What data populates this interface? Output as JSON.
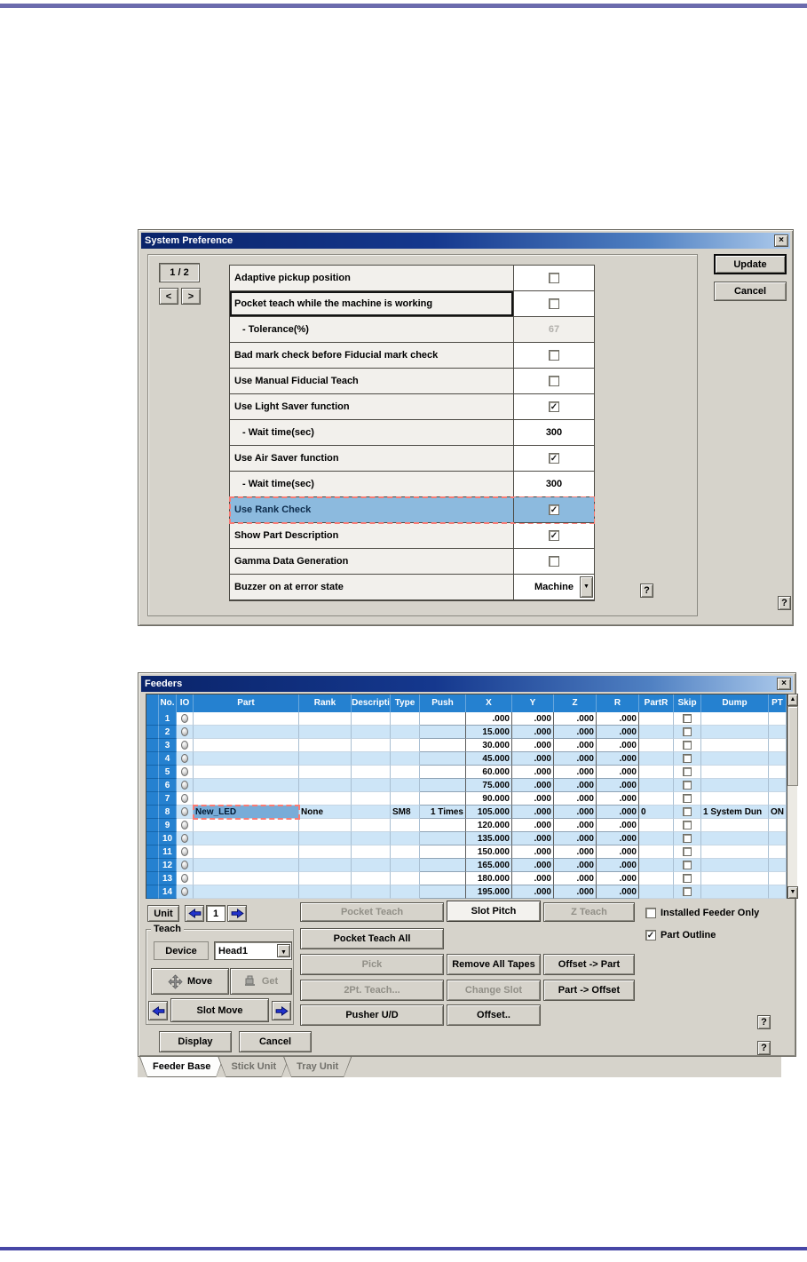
{
  "icons": {
    "close": "×",
    "dropdown": "▼",
    "scroll_up": "▲",
    "scroll_down": "▼",
    "check": "✓",
    "help": "?"
  },
  "colors": {
    "header_blue": "#2581d0",
    "row_alt_blue": "#cde5f7",
    "selected_cell": "#78acd8",
    "highlight_row": "#8cbade",
    "annotation_red": "#f97b74",
    "top_rule": "#6b6bad",
    "bottom_rule": "#4747a6"
  },
  "system_preference": {
    "title": "System Preference",
    "pager": {
      "label": "1 / 2",
      "prev": "<",
      "next": ">"
    },
    "rows": [
      {
        "label": "Adaptive pickup position",
        "type": "checkbox",
        "checked": false
      },
      {
        "label": "Pocket teach while the machine is working",
        "type": "checkbox",
        "checked": false,
        "focused": true
      },
      {
        "label": "- Tolerance(%)",
        "type": "text",
        "value": "67",
        "disabled": true,
        "indent": true
      },
      {
        "label": "Bad mark check before Fiducial mark check",
        "type": "checkbox",
        "checked": false
      },
      {
        "label": "Use Manual Fiducial Teach",
        "type": "checkbox",
        "checked": false
      },
      {
        "label": "Use Light Saver function",
        "type": "checkbox",
        "checked": true
      },
      {
        "label": "- Wait time(sec)",
        "type": "text",
        "value": "300",
        "indent": true
      },
      {
        "label": "Use Air Saver function",
        "type": "checkbox",
        "checked": true
      },
      {
        "label": "- Wait time(sec)",
        "type": "text",
        "value": "300",
        "indent": true
      },
      {
        "label": "Use Rank Check",
        "type": "checkbox",
        "checked": true,
        "highlighted": true
      },
      {
        "label": "Show Part Description",
        "type": "checkbox",
        "checked": true
      },
      {
        "label": "Gamma Data Generation",
        "type": "checkbox",
        "checked": false
      },
      {
        "label": "Buzzer on at error state",
        "type": "dropdown",
        "value": "Machine"
      }
    ],
    "buttons": {
      "update": "Update",
      "cancel": "Cancel"
    }
  },
  "feeders": {
    "title": "Feeders",
    "columns": [
      "No.",
      "IO",
      "Part",
      "Rank",
      "Descripti",
      "Type",
      "Push",
      "X",
      "Y",
      "Z",
      "R",
      "PartR",
      "Skip",
      "Dump",
      "PT"
    ],
    "rows": [
      {
        "no": "1",
        "part": "",
        "rank": "",
        "desc": "",
        "type": "",
        "push": "",
        "x": ".000",
        "y": ".000",
        "z": ".000",
        "r": ".000",
        "partr": "",
        "dump": "",
        "pt": ""
      },
      {
        "no": "2",
        "part": "",
        "rank": "",
        "desc": "",
        "type": "",
        "push": "",
        "x": "15.000",
        "y": ".000",
        "z": ".000",
        "r": ".000",
        "partr": "",
        "dump": "",
        "pt": ""
      },
      {
        "no": "3",
        "part": "",
        "rank": "",
        "desc": "",
        "type": "",
        "push": "",
        "x": "30.000",
        "y": ".000",
        "z": ".000",
        "r": ".000",
        "partr": "",
        "dump": "",
        "pt": ""
      },
      {
        "no": "4",
        "part": "",
        "rank": "",
        "desc": "",
        "type": "",
        "push": "",
        "x": "45.000",
        "y": ".000",
        "z": ".000",
        "r": ".000",
        "partr": "",
        "dump": "",
        "pt": ""
      },
      {
        "no": "5",
        "part": "",
        "rank": "",
        "desc": "",
        "type": "",
        "push": "",
        "x": "60.000",
        "y": ".000",
        "z": ".000",
        "r": ".000",
        "partr": "",
        "dump": "",
        "pt": ""
      },
      {
        "no": "6",
        "part": "",
        "rank": "",
        "desc": "",
        "type": "",
        "push": "",
        "x": "75.000",
        "y": ".000",
        "z": ".000",
        "r": ".000",
        "partr": "",
        "dump": "",
        "pt": ""
      },
      {
        "no": "7",
        "part": "",
        "rank": "",
        "desc": "",
        "type": "",
        "push": "",
        "x": "90.000",
        "y": ".000",
        "z": ".000",
        "r": ".000",
        "partr": "",
        "dump": "",
        "pt": ""
      },
      {
        "no": "8",
        "part": "New_LED",
        "rank": "None",
        "desc": "",
        "type": "SM8",
        "push": "1 Times",
        "x": "105.000",
        "y": ".000",
        "z": ".000",
        "r": ".000",
        "partr": "0",
        "dump": "1 System Dun",
        "pt": "ON",
        "selected": true
      },
      {
        "no": "9",
        "part": "",
        "rank": "",
        "desc": "",
        "type": "",
        "push": "",
        "x": "120.000",
        "y": ".000",
        "z": ".000",
        "r": ".000",
        "partr": "",
        "dump": "",
        "pt": ""
      },
      {
        "no": "10",
        "part": "",
        "rank": "",
        "desc": "",
        "type": "",
        "push": "",
        "x": "135.000",
        "y": ".000",
        "z": ".000",
        "r": ".000",
        "partr": "",
        "dump": "",
        "pt": ""
      },
      {
        "no": "11",
        "part": "",
        "rank": "",
        "desc": "",
        "type": "",
        "push": "",
        "x": "150.000",
        "y": ".000",
        "z": ".000",
        "r": ".000",
        "partr": "",
        "dump": "",
        "pt": ""
      },
      {
        "no": "12",
        "part": "",
        "rank": "",
        "desc": "",
        "type": "",
        "push": "",
        "x": "165.000",
        "y": ".000",
        "z": ".000",
        "r": ".000",
        "partr": "",
        "dump": "",
        "pt": ""
      },
      {
        "no": "13",
        "part": "",
        "rank": "",
        "desc": "",
        "type": "",
        "push": "",
        "x": "180.000",
        "y": ".000",
        "z": ".000",
        "r": ".000",
        "partr": "",
        "dump": "",
        "pt": ""
      },
      {
        "no": "14",
        "part": "",
        "rank": "",
        "desc": "",
        "type": "",
        "push": "",
        "x": "195.000",
        "y": ".000",
        "z": ".000",
        "r": ".000",
        "partr": "",
        "dump": "",
        "pt": ""
      }
    ],
    "unit": {
      "label": "Unit",
      "value": "1"
    },
    "teach": {
      "label": "Teach",
      "device": "Device",
      "device_value": "Head1",
      "move": "Move",
      "get": "Get",
      "slot_move": "Slot Move"
    },
    "buttons": {
      "pocket_teach": "Pocket Teach",
      "slot_pitch": "Slot Pitch",
      "z_teach": "Z Teach",
      "pocket_teach_all": "Pocket Teach All",
      "pick": "Pick",
      "remove_all_tapes": "Remove All Tapes",
      "offset_to_part": "Offset -> Part",
      "two_pt_teach": "2Pt. Teach...",
      "change_slot": "Change Slot",
      "part_to_offset": "Part -> Offset",
      "pusher_ud": "Pusher U/D",
      "offset": "Offset..",
      "display": "Display",
      "cancel": "Cancel"
    },
    "checkboxes": [
      {
        "label": "Installed Feeder Only",
        "checked": false
      },
      {
        "label": "Part Outline",
        "checked": true
      }
    ],
    "tabs": [
      {
        "label": "Feeder Base",
        "active": true
      },
      {
        "label": "Stick Unit",
        "active": false
      },
      {
        "label": "Tray Unit",
        "active": false
      }
    ]
  }
}
